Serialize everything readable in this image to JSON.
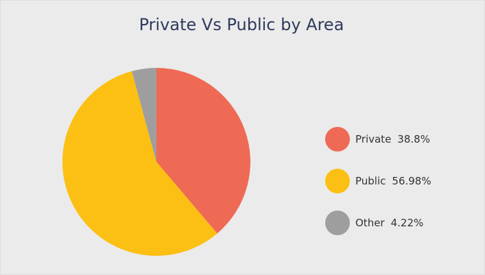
{
  "chart_data": {
    "type": "pie",
    "title": "Private Vs Public by Area",
    "categories": [
      "Private",
      "Public",
      "Other"
    ],
    "values": [
      38.8,
      56.98,
      4.22
    ],
    "value_labels": [
      "38.8%",
      "56.98%",
      "4.22%"
    ],
    "colors": [
      "#ef6a55",
      "#fcbf13",
      "#9e9e9e"
    ]
  }
}
